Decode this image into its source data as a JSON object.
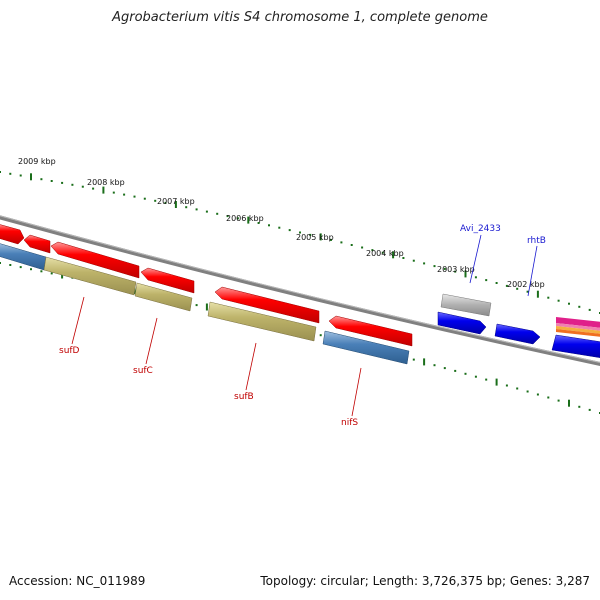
{
  "title": "Agrobacterium vitis S4 chromosome 1, complete genome",
  "footer": {
    "accession": "Accession: NC_011989",
    "summary": "Topology: circular; Length: 3,726,375 bp; Genes: 3,287"
  },
  "scale_labels": [
    "2009 kbp",
    "2008 kbp",
    "2007 kbp",
    "2006 kbp",
    "2005 kbp",
    "2004 kbp",
    "2003 kbp",
    "2002 kbp"
  ],
  "gene_labels": [
    {
      "name": "sufD",
      "color": "red"
    },
    {
      "name": "sufC",
      "color": "red"
    },
    {
      "name": "sufB",
      "color": "red"
    },
    {
      "name": "nifS",
      "color": "red"
    },
    {
      "name": "Avi_2433",
      "color": "blue"
    },
    {
      "name": "rhtB",
      "color": "blue"
    }
  ],
  "colors": {
    "cds": "#ff0000",
    "cog_metabolism": "#b8b060",
    "cog_steelblue": "#4a80b8",
    "blue_feature": "#0000ee",
    "grey_feature": "#b0b0b0",
    "backbone": "#808080",
    "ticks": "#1a6e1a"
  }
}
